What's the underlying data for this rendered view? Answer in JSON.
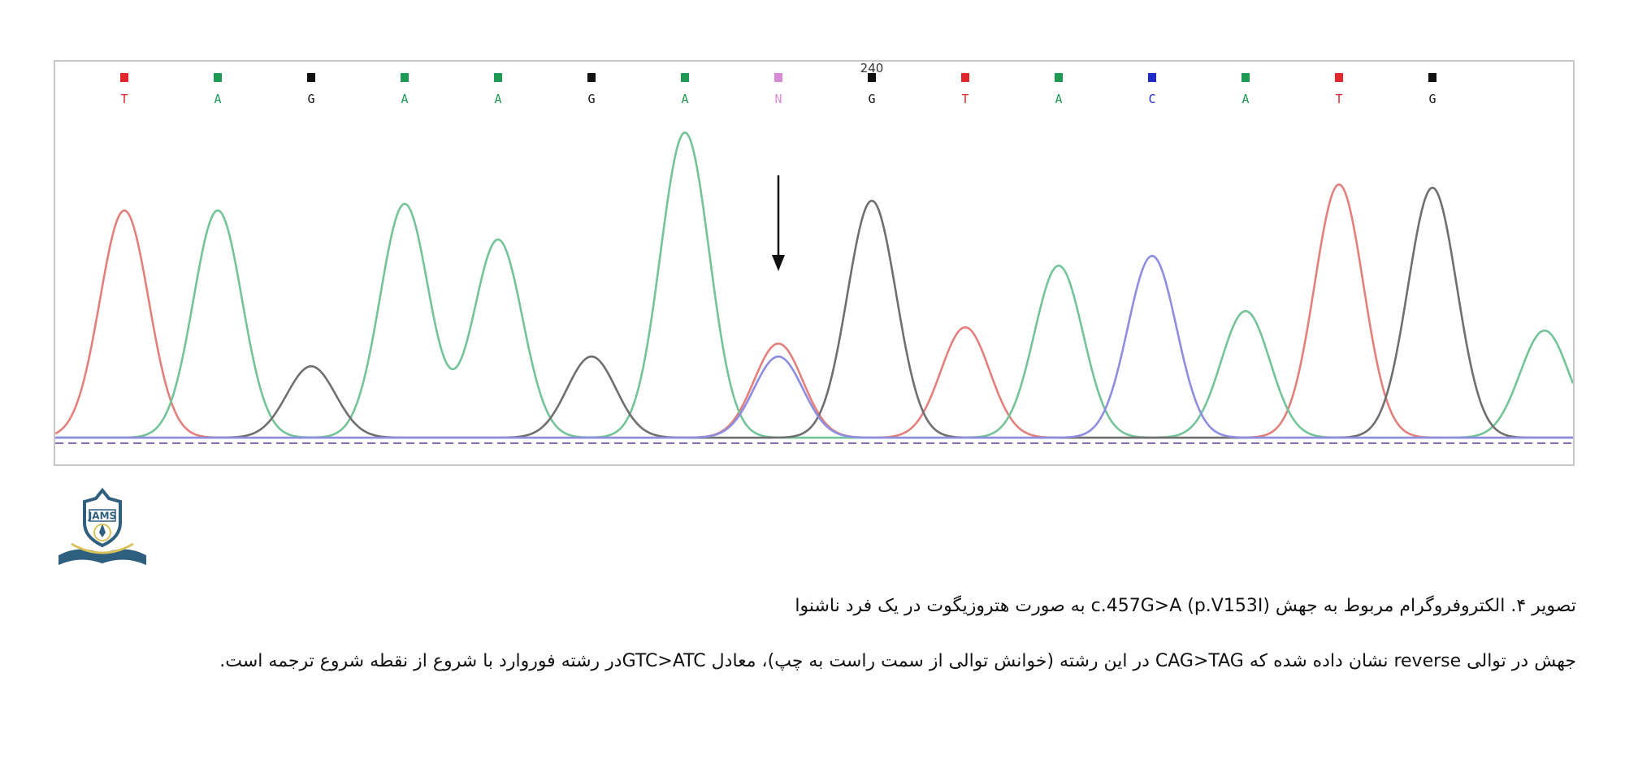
{
  "chart_data": {
    "type": "line",
    "title": "",
    "xlabel": "",
    "ylabel": "",
    "position_label": "240",
    "position_label_base_index": 8,
    "mutation_arrow_base_index": 7,
    "base_calls": [
      {
        "base": "T",
        "color": "#e0282c"
      },
      {
        "base": "A",
        "color": "#1f9a55"
      },
      {
        "base": "G",
        "color": "#111111"
      },
      {
        "base": "A",
        "color": "#1f9a55"
      },
      {
        "base": "A",
        "color": "#1f9a55"
      },
      {
        "base": "G",
        "color": "#111111"
      },
      {
        "base": "A",
        "color": "#1f9a55"
      },
      {
        "base": "N",
        "color": "#d98ad4"
      },
      {
        "base": "G",
        "color": "#111111"
      },
      {
        "base": "T",
        "color": "#e0282c"
      },
      {
        "base": "A",
        "color": "#1f9a55"
      },
      {
        "base": "C",
        "color": "#1f2bc8"
      },
      {
        "base": "A",
        "color": "#1f9a55"
      },
      {
        "base": "T",
        "color": "#e0282c"
      },
      {
        "base": "G",
        "color": "#111111"
      }
    ],
    "series": [
      {
        "base": "T",
        "color": "#e3807c",
        "peaks": [
          [
            0,
            0.7
          ],
          [
            7,
            0.29
          ],
          [
            9,
            0.34
          ],
          [
            13,
            0.78
          ]
        ]
      },
      {
        "base": "A",
        "color": "#74c399",
        "peaks": [
          [
            1,
            0.7
          ],
          [
            3,
            0.72
          ],
          [
            4,
            0.61
          ],
          [
            6,
            0.94
          ],
          [
            10,
            0.53
          ],
          [
            12,
            0.39
          ],
          [
            15.2,
            0.33
          ]
        ]
      },
      {
        "base": "G",
        "color": "#6f6f6f",
        "peaks": [
          [
            2,
            0.22
          ],
          [
            5,
            0.25
          ],
          [
            8,
            0.73
          ],
          [
            14,
            0.77
          ]
        ]
      },
      {
        "base": "C",
        "color": "#8d8ee0",
        "peaks": [
          [
            7,
            0.25
          ],
          [
            11,
            0.56
          ]
        ]
      }
    ]
  },
  "logo": {
    "text": "JAMS",
    "primary_color": "#2f5f7f",
    "accent_color": "#d9c25a"
  },
  "caption": {
    "text": "تصویر ۴. الکتروفروگرام مربوط به جهش c.457G>A (p.V153I) به صورت هتروزیگوت در یک فرد ناشنوا"
  },
  "note": {
    "text": "جهش در توالی reverse نشان داده شده که CAG>TAG در این رشته (خوانش توالی از سمت راست به چپ)، معادل GTC>ATCدر رشته فوروارد با شروع از نقطه شروع ترجمه است."
  }
}
